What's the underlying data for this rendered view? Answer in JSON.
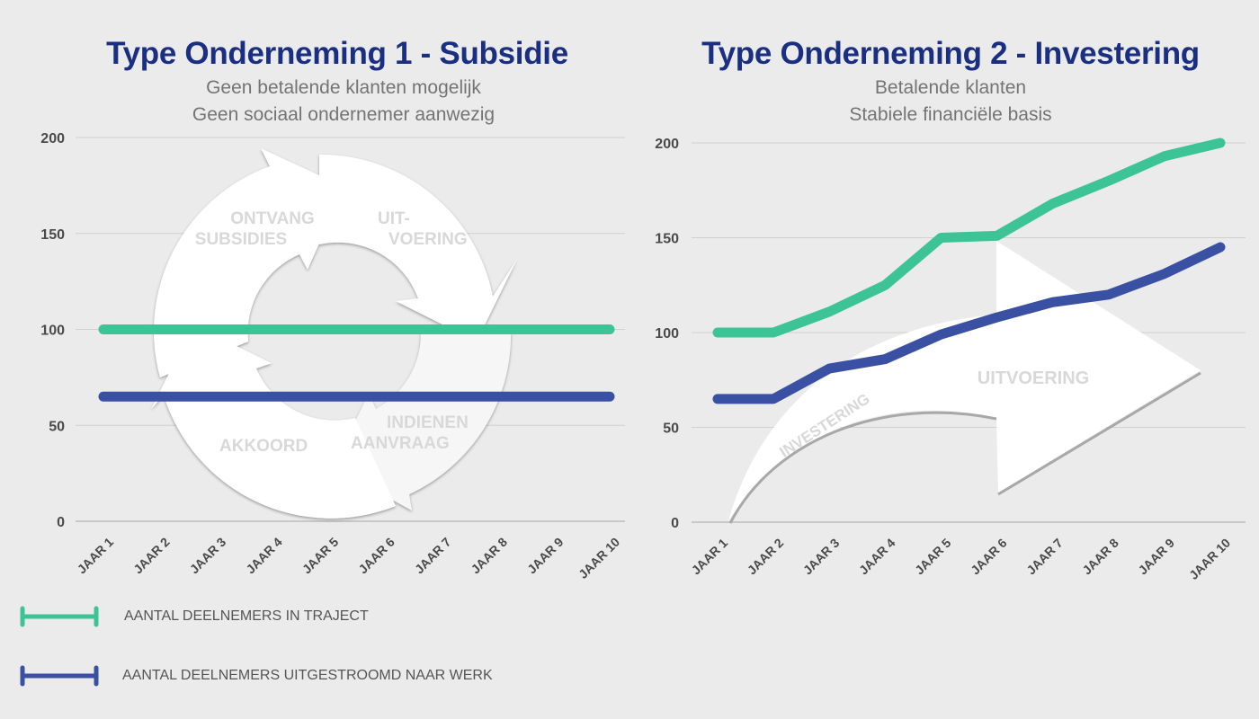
{
  "colors": {
    "background": "#ebebeb",
    "title": "#1b2f82",
    "subtitle": "#747474",
    "green": "#3cc497",
    "blue": "#3a50a3",
    "grid": "#d0d0d0",
    "tick": "#4a4a4a",
    "graphic_text": "#d8d8d8"
  },
  "legend": [
    {
      "label": "AANTAL DEELNEMERS IN TRAJECT",
      "color": "#3cc497"
    },
    {
      "label": "AANTAL DEELNEMERS UITGESTROOMD NAAR WERK",
      "color": "#3a50a3"
    }
  ],
  "left_graphic": {
    "cycle_labels": [
      {
        "line1": "ONTVANG",
        "line2": "SUBSIDIES"
      },
      {
        "line1": "UIT-",
        "line2": "VOERING"
      },
      {
        "line1": "INDIENEN",
        "line2": "AANVRAAG"
      },
      {
        "line1": "AKKOORD",
        "line2": ""
      }
    ]
  },
  "right_graphic": {
    "arrow_labels": [
      "INVESTERING",
      "UITVOERING"
    ]
  },
  "chart_data": [
    {
      "type": "line",
      "title": "Type Onderneming 1 - Subsidie",
      "subtitle": [
        "Geen betalende klanten mogelijk",
        "Geen sociaal ondernemer aanwezig"
      ],
      "categories": [
        "JAAR 1",
        "JAAR 2",
        "JAAR 3",
        "JAAR 4",
        "JAAR 5",
        "JAAR 6",
        "JAAR 7",
        "JAAR 8",
        "JAAR 9",
        "JAAR 10"
      ],
      "yticks": [
        0,
        50,
        100,
        150,
        200
      ],
      "ylim": [
        0,
        200
      ],
      "grid": true,
      "legend_position": "bottom-left",
      "series": [
        {
          "name": "AANTAL DEELNEMERS IN TRAJECT",
          "values": [
            100,
            100,
            100,
            100,
            100,
            100,
            100,
            100,
            100,
            100
          ]
        },
        {
          "name": "AANTAL DEELNEMERS UITGESTROOMD NAAR WERK",
          "values": [
            65,
            65,
            65,
            65,
            65,
            65,
            65,
            65,
            65,
            65
          ]
        }
      ]
    },
    {
      "type": "line",
      "title": "Type Onderneming 2 - Investering",
      "subtitle": [
        "Betalende klanten",
        "Stabiele financiële basis"
      ],
      "categories": [
        "JAAR 1",
        "JAAR 2",
        "JAAR 3",
        "JAAR 4",
        "JAAR 5",
        "JAAR 6",
        "JAAR 7",
        "JAAR 8",
        "JAAR 9",
        "JAAR 10"
      ],
      "yticks": [
        0,
        50,
        100,
        150,
        200
      ],
      "ylim": [
        0,
        200
      ],
      "grid": true,
      "series": [
        {
          "name": "AANTAL DEELNEMERS IN TRAJECT",
          "values": [
            100,
            100,
            111,
            125,
            150,
            151,
            168,
            180,
            193,
            200
          ]
        },
        {
          "name": "AANTAL DEELNEMERS UITGESTROOMD NAAR WERK",
          "values": [
            65,
            65,
            81,
            86,
            99,
            108,
            116,
            120,
            131,
            145
          ]
        }
      ]
    }
  ]
}
